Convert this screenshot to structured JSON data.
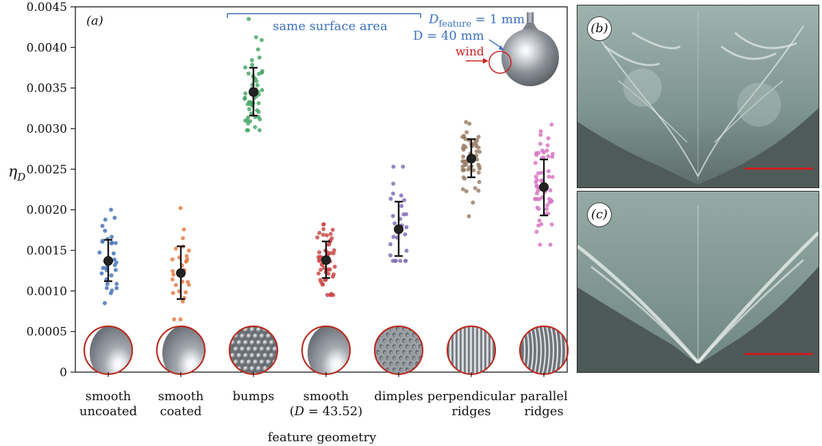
{
  "chart_data": {
    "type": "scatter",
    "panel_label": "(a)",
    "ylabel": "η",
    "ylabel_subscript": "D",
    "xlabel": "feature geometry",
    "ylim": [
      0,
      0.0045
    ],
    "yticks": [
      "0",
      "0.0005",
      "0.0010",
      "0.0015",
      "0.0020",
      "0.0025",
      "0.0030",
      "0.0035",
      "0.0040",
      "0.0045"
    ],
    "ytick_values": [
      0,
      0.0005,
      0.001,
      0.0015,
      0.002,
      0.0025,
      0.003,
      0.0035,
      0.004,
      0.0045
    ],
    "series": [
      {
        "name": "smooth uncoated",
        "label_lines": [
          "smooth",
          "uncoated"
        ],
        "color": "#4a76b8",
        "mean": 0.00137,
        "err_low": 0.00112,
        "err_high": 0.00163,
        "min": 0.00085,
        "max": 0.002,
        "n": 32,
        "inset": "smooth"
      },
      {
        "name": "smooth coated",
        "label_lines": [
          "smooth",
          "coated"
        ],
        "color": "#e0804a",
        "mean": 0.00122,
        "err_low": 0.0009,
        "err_high": 0.00155,
        "min": 0.00065,
        "max": 0.00202,
        "n": 30,
        "inset": "smooth"
      },
      {
        "name": "bumps",
        "label_lines": [
          "bumps"
        ],
        "color": "#4aa868",
        "mean": 0.00345,
        "err_low": 0.00316,
        "err_high": 0.00375,
        "min": 0.00298,
        "max": 0.00435,
        "n": 55,
        "inset": "bumps"
      },
      {
        "name": "smooth (D = 43.52)",
        "label_lines": [
          "smooth",
          "(D = 43.52)"
        ],
        "color": "#cc4a4a",
        "mean": 0.00138,
        "err_low": 0.00116,
        "err_high": 0.00161,
        "min": 0.00095,
        "max": 0.00182,
        "n": 55,
        "inset": "smooth"
      },
      {
        "name": "dimples",
        "label_lines": [
          "dimples"
        ],
        "color": "#8270b8",
        "mean": 0.00176,
        "err_low": 0.00143,
        "err_high": 0.0021,
        "min": 0.00137,
        "max": 0.00253,
        "n": 30,
        "inset": "dimples"
      },
      {
        "name": "perpendicular ridges",
        "label_lines": [
          "perpendicular",
          "ridges"
        ],
        "color": "#9c8068",
        "mean": 0.00263,
        "err_low": 0.0024,
        "err_high": 0.00287,
        "min": 0.00192,
        "max": 0.00308,
        "n": 60,
        "inset": "vridges"
      },
      {
        "name": "parallel ridges",
        "label_lines": [
          "parallel",
          "ridges"
        ],
        "color": "#d878c4",
        "mean": 0.00228,
        "err_low": 0.00193,
        "err_high": 0.00262,
        "min": 0.00157,
        "max": 0.00305,
        "n": 60,
        "inset": "hridges"
      }
    ],
    "annotations": {
      "bracket_label": "same surface area",
      "d_feature": "D",
      "d_feature_sub": "feature",
      "d_feature_value": " = 1 mm",
      "d_sphere": "D = 40 mm",
      "wind": "wind"
    }
  },
  "photos": [
    {
      "label": "(b)"
    },
    {
      "label": "(c)"
    }
  ],
  "colors": {
    "annotation_blue": "#3a6fc0",
    "wind_red": "#c81e1e",
    "inset_ring": "#b82a1e",
    "scalebar": "#d01c1c"
  }
}
